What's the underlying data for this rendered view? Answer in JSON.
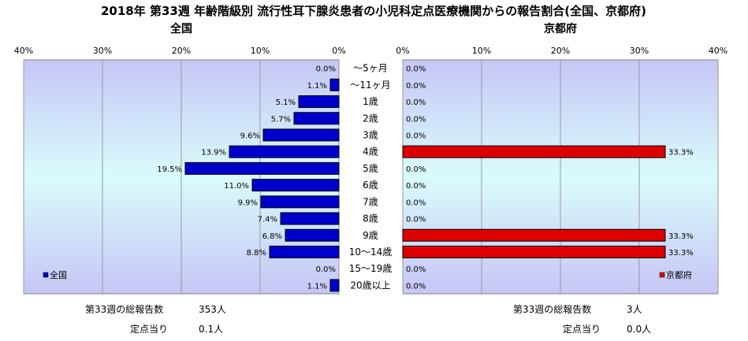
{
  "chart_data": {
    "type": "bar",
    "title": "2018年 第33週 年齢階級別 流行性耳下腺炎患者の小児科定点医療機関からの報告割合(全国、京都府)",
    "categories": [
      "～5ヶ月",
      "～11ヶ月",
      "1歳",
      "2歳",
      "3歳",
      "4歳",
      "5歳",
      "6歳",
      "7歳",
      "8歳",
      "9歳",
      "10～14歳",
      "15～19歳",
      "20歳以上"
    ],
    "xlim": [
      0,
      40
    ],
    "tick_labels": [
      "0%",
      "10%",
      "20%",
      "30%",
      "40%"
    ],
    "series": [
      {
        "name": "全国",
        "panel_title": "全国",
        "legend": "全国",
        "color": "#0000cc",
        "values": [
          0.0,
          1.1,
          5.1,
          5.7,
          9.6,
          13.9,
          19.5,
          11.0,
          9.9,
          7.4,
          6.8,
          8.8,
          0.0,
          1.1
        ],
        "labels": [
          "0.0%",
          "1.1%",
          "5.1%",
          "5.7%",
          "9.6%",
          "13.9%",
          "19.5%",
          "11.0%",
          "9.9%",
          "7.4%",
          "6.8%",
          "8.8%",
          "0.0%",
          "1.1%"
        ]
      },
      {
        "name": "京都府",
        "panel_title": "京都府",
        "legend": "京都府",
        "color": "#dd0000",
        "values": [
          0.0,
          0.0,
          0.0,
          0.0,
          0.0,
          33.3,
          0.0,
          0.0,
          0.0,
          0.0,
          33.3,
          33.3,
          0.0,
          0.0
        ],
        "labels": [
          "0.0%",
          "0.0%",
          "0.0%",
          "0.0%",
          "0.0%",
          "33.3%",
          "0.0%",
          "0.0%",
          "0.0%",
          "0.0%",
          "33.3%",
          "33.3%",
          "0.0%",
          "0.0%"
        ]
      }
    ],
    "grid": true
  },
  "footer": {
    "national": {
      "total_label": "第33週の総報告数",
      "total_value": "353人",
      "per_label": "定点当り",
      "per_value": "0.1人"
    },
    "kyoto": {
      "total_label": "第33週の総報告数",
      "total_value": "3人",
      "per_label": "定点当り",
      "per_value": "0.0人"
    }
  }
}
